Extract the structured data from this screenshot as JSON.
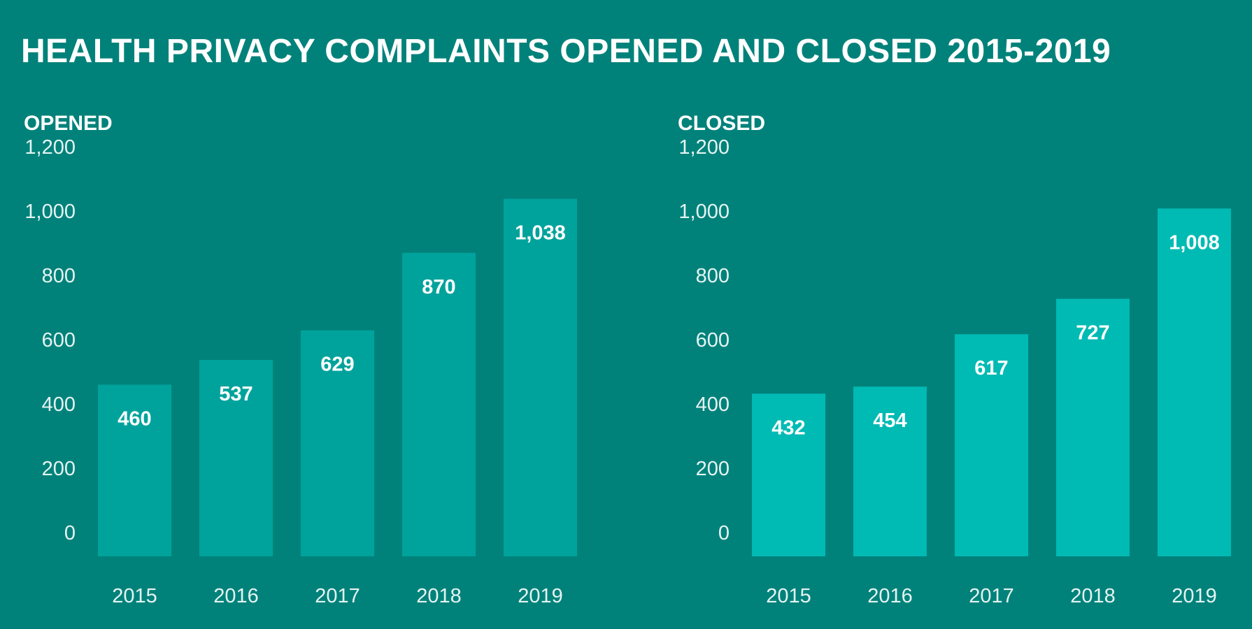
{
  "title": "HEALTH PRIVACY COMPLAINTS OPENED AND CLOSED 2015-2019",
  "colors": {
    "background": "#00827a",
    "opened_bar": "#00a39c",
    "closed_bar": "#00bab4",
    "text": "#ffffff"
  },
  "chart_data": [
    {
      "type": "bar",
      "title": "OPENED",
      "categories": [
        "2015",
        "2016",
        "2017",
        "2018",
        "2019"
      ],
      "values": [
        460,
        537,
        629,
        870,
        1038
      ],
      "value_labels": [
        "460",
        "537",
        "629",
        "870",
        "1,038"
      ],
      "y_ticks": [
        0,
        200,
        400,
        600,
        800,
        1000,
        1200
      ],
      "y_tick_labels": [
        "0",
        "200",
        "400",
        "600",
        "800",
        "1,000",
        "1,200"
      ],
      "ylim": [
        0,
        1200
      ],
      "xlabel": "",
      "ylabel": "",
      "grid": false,
      "legend": "none",
      "color": "#00a39c"
    },
    {
      "type": "bar",
      "title": "CLOSED",
      "categories": [
        "2015",
        "2016",
        "2017",
        "2018",
        "2019"
      ],
      "values": [
        432,
        454,
        617,
        727,
        1008
      ],
      "value_labels": [
        "432",
        "454",
        "617",
        "727",
        "1,008"
      ],
      "y_ticks": [
        0,
        200,
        400,
        600,
        800,
        1000,
        1200
      ],
      "y_tick_labels": [
        "0",
        "200",
        "400",
        "600",
        "800",
        "1,000",
        "1,200"
      ],
      "ylim": [
        0,
        1200
      ],
      "xlabel": "",
      "ylabel": "",
      "grid": false,
      "legend": "none",
      "color": "#00bab4"
    }
  ]
}
